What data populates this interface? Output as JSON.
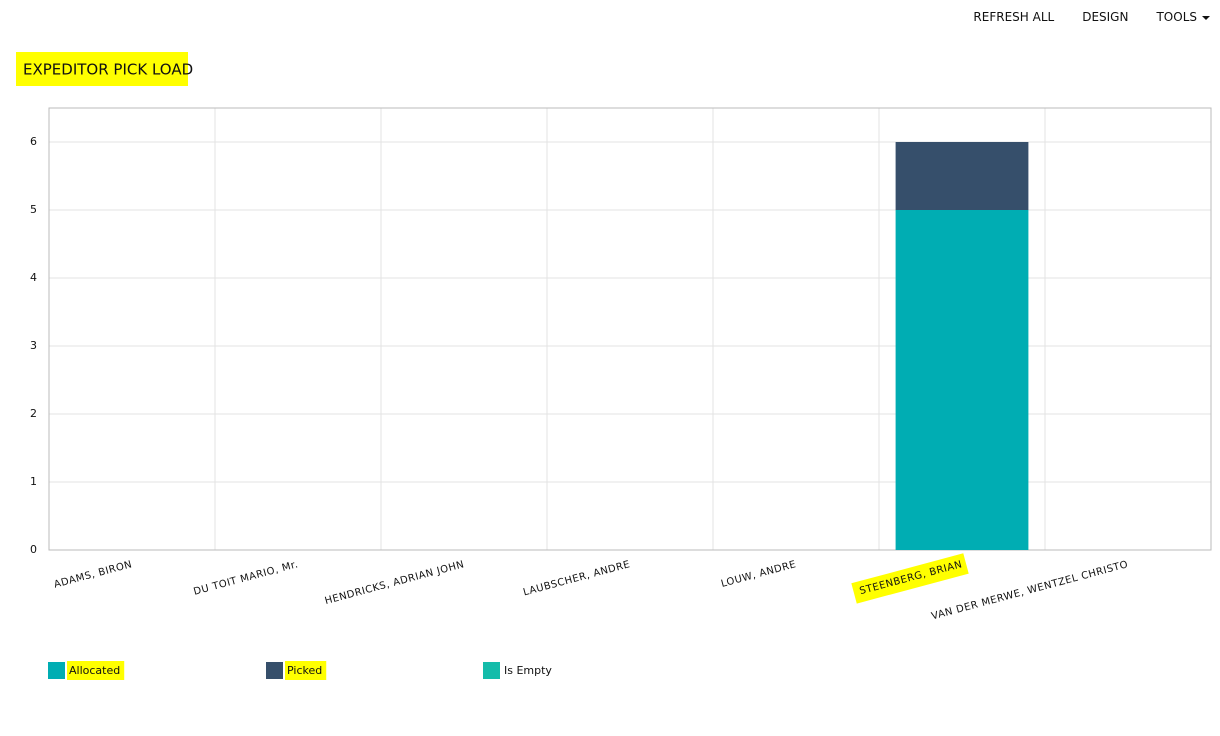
{
  "menu": [
    "REFRESH ALL",
    "DESIGN",
    "TOOLS"
  ],
  "chart_data": {
    "type": "bar",
    "stacked": true,
    "title": "EXPEDITOR PICK LOAD",
    "categories": [
      "ADAMS, BIRON",
      "DU TOIT MARIO, Mr.",
      "HENDRICKS, ADRIAN JOHN",
      "LAUBSCHER, ANDRE",
      "LOUW, ANDRE",
      "STEENBERG, BRIAN",
      "VAN DER MERWE, WENTZEL CHRISTO"
    ],
    "series": [
      {
        "name": "Allocated",
        "color": "#00adb3",
        "values": [
          0,
          0,
          0,
          0,
          0,
          5,
          0
        ]
      },
      {
        "name": "Picked",
        "color": "#364f6b",
        "values": [
          0,
          0,
          0,
          0,
          0,
          1,
          0
        ]
      },
      {
        "name": "Is Empty",
        "color": "#14bcaa",
        "values": [
          0,
          0,
          0,
          0,
          0,
          0,
          0
        ]
      }
    ],
    "ylim": [
      0,
      6.5
    ],
    "yticks": [
      0,
      1,
      2,
      3,
      4,
      5,
      6
    ],
    "grid": true,
    "legend": "bottom"
  }
}
